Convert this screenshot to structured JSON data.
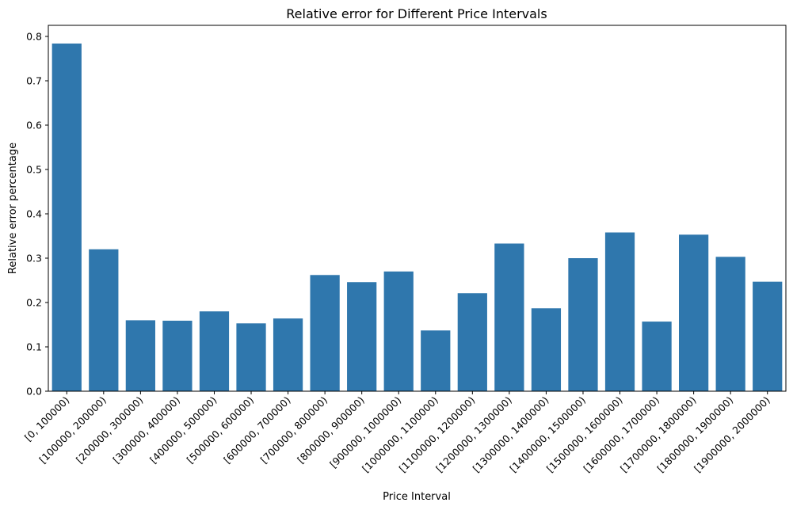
{
  "chart_data": {
    "type": "bar",
    "title": "Relative error for Different Price Intervals",
    "xlabel": "Price Interval",
    "ylabel": "Relative error percentage",
    "ylim": [
      0,
      0.825
    ],
    "yticks": [
      "0.0",
      "0.1",
      "0.2",
      "0.3",
      "0.4",
      "0.5",
      "0.6",
      "0.7",
      "0.8"
    ],
    "bar_color": "#2f77ad",
    "grid": false,
    "categories": [
      "[0, 100000)",
      "[100000, 200000)",
      "[200000, 300000)",
      "[300000, 400000)",
      "[400000, 500000)",
      "[500000, 600000)",
      "[600000, 700000)",
      "[700000, 800000)",
      "[800000, 900000)",
      "[900000, 1000000)",
      "[1000000, 1100000)",
      "[1100000, 1200000)",
      "[1200000, 1300000)",
      "[1300000, 1400000)",
      "[1400000, 1500000)",
      "[1500000, 1600000)",
      "[1600000, 1700000)",
      "[1700000, 1800000)",
      "[1800000, 1900000)",
      "[1900000, 2000000)"
    ],
    "values": [
      0.784,
      0.32,
      0.16,
      0.159,
      0.18,
      0.153,
      0.164,
      0.262,
      0.246,
      0.27,
      0.137,
      0.221,
      0.333,
      0.187,
      0.3,
      0.358,
      0.157,
      0.353,
      0.303,
      0.247
    ]
  }
}
